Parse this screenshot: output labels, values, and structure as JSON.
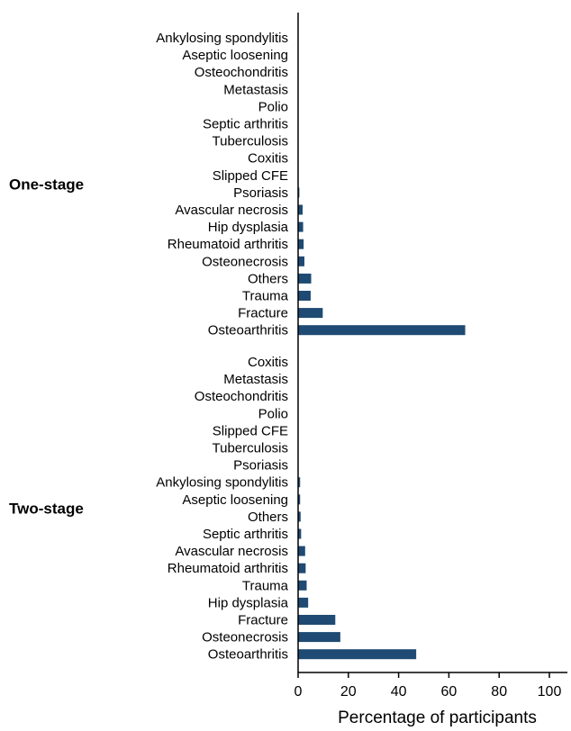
{
  "chart_data": {
    "type": "bar",
    "orientation": "horizontal",
    "xlabel": "Percentage of participants",
    "xlim": [
      0,
      100
    ],
    "xticks": [
      0,
      20,
      40,
      60,
      80,
      100
    ],
    "bar_color": "#1f4a73",
    "groups": [
      {
        "name": "One-stage",
        "categories": [
          "Ankylosing spondylitis",
          "Aseptic loosening",
          "Osteochondritis",
          "Metastasis",
          "Polio",
          "Septic arthritis",
          "Tuberculosis",
          "Coxitis",
          "Slipped CFE",
          "Psoriasis",
          "Avascular necrosis",
          "Hip dysplasia",
          "Rheumatoid arthritis",
          "Osteonecrosis",
          "Others",
          "Trauma",
          "Fracture",
          "Osteoarthritis"
        ],
        "values": [
          0,
          0,
          0,
          0,
          0,
          0,
          0,
          0,
          0,
          0.5,
          1.8,
          2.0,
          2.2,
          2.5,
          5.2,
          5.0,
          9.8,
          66.5
        ]
      },
      {
        "name": "Two-stage",
        "categories": [
          "Coxitis",
          "Metastasis",
          "Osteochondritis",
          "Polio",
          "Slipped CFE",
          "Tuberculosis",
          "Psoriasis",
          "Ankylosing spondylitis",
          "Aseptic loosening",
          "Others",
          "Septic arthritis",
          "Avascular necrosis",
          "Rheumatoid arthritis",
          "Trauma",
          "Hip dysplasia",
          "Fracture",
          "Osteonecrosis",
          "Osteoarthritis"
        ],
        "values": [
          0,
          0,
          0,
          0,
          0,
          0,
          0,
          0.8,
          0.8,
          1.0,
          1.2,
          2.8,
          3.0,
          3.4,
          4.0,
          14.8,
          16.8,
          47.0
        ]
      }
    ]
  }
}
